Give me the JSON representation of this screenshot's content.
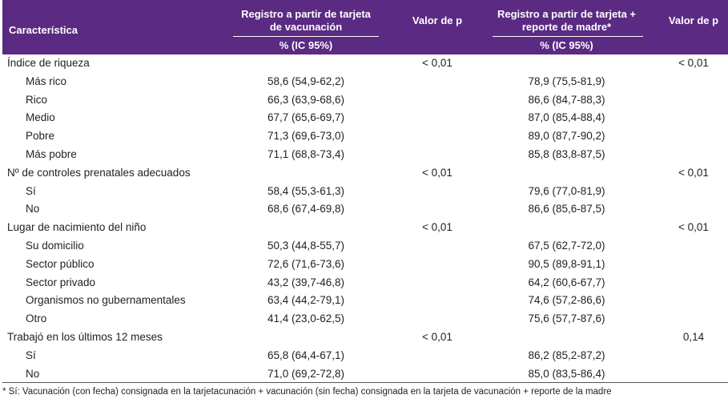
{
  "header": {
    "caracteristica": "Característica",
    "registro1_line1": "Registro a partir de tarjeta",
    "registro1_line2": "de vacunación",
    "valor_p_1": "Valor de p",
    "registro2_line1": "Registro a partir de tarjeta +",
    "registro2_line2": "reporte de madre*",
    "valor_p_2": "Valor de p",
    "sub1": "% (IC 95%)",
    "sub2": "% (IC 95%)"
  },
  "rows": [
    {
      "label": "Índice de riqueza",
      "v1": "",
      "p1": "< 0,01",
      "v2": "",
      "p2": "< 0,01",
      "sub": false
    },
    {
      "label": "Más rico",
      "v1": "58,6 (54,9-62,2)",
      "p1": "",
      "v2": "78,9 (75,5-81,9)",
      "p2": "",
      "sub": true
    },
    {
      "label": "Rico",
      "v1": "66,3 (63,9-68,6)",
      "p1": "",
      "v2": "86,6 (84,7-88,3)",
      "p2": "",
      "sub": true
    },
    {
      "label": "Medio",
      "v1": "67,7 (65,6-69,7)",
      "p1": "",
      "v2": "87,0 (85,4-88,4)",
      "p2": "",
      "sub": true
    },
    {
      "label": "Pobre",
      "v1": "71,3 (69,6-73,0)",
      "p1": "",
      "v2": "89,0 (87,7-90,2)",
      "p2": "",
      "sub": true
    },
    {
      "label": "Más pobre",
      "v1": "71,1 (68,8-73,4)",
      "p1": "",
      "v2": "85,8 (83,8-87,5)",
      "p2": "",
      "sub": true
    },
    {
      "label": "Nº de controles prenatales adecuados",
      "v1": "",
      "p1": "< 0,01",
      "v2": "",
      "p2": "< 0,01",
      "sub": false
    },
    {
      "label": "Sí",
      "v1": "58,4 (55,3-61,3)",
      "p1": "",
      "v2": "79,6 (77,0-81,9)",
      "p2": "",
      "sub": true
    },
    {
      "label": "No",
      "v1": "68,6 (67,4-69,8)",
      "p1": "",
      "v2": "86,6 (85,6-87,5)",
      "p2": "",
      "sub": true
    },
    {
      "label": "Lugar de nacimiento del niño",
      "v1": "",
      "p1": "< 0,01",
      "v2": "",
      "p2": "< 0,01",
      "sub": false
    },
    {
      "label": "Su domicilio",
      "v1": "50,3 (44,8-55,7)",
      "p1": "",
      "v2": "67,5 (62,7-72,0)",
      "p2": "",
      "sub": true
    },
    {
      "label": "Sector público",
      "v1": "72,6 (71,6-73,6)",
      "p1": "",
      "v2": "90,5 (89,8-91,1)",
      "p2": "",
      "sub": true
    },
    {
      "label": "Sector privado",
      "v1": "43,2 (39,7-46,8)",
      "p1": "",
      "v2": "64,2 (60,6-67,7)",
      "p2": "",
      "sub": true
    },
    {
      "label": "Organismos no gubernamentales",
      "v1": "63,4 (44,2-79,1)",
      "p1": "",
      "v2": "74,6 (57,2-86,6)",
      "p2": "",
      "sub": true
    },
    {
      "label": "Otro",
      "v1": "41,4 (23,0-62,5)",
      "p1": "",
      "v2": "75,6 (57,7-87,6)",
      "p2": "",
      "sub": true
    },
    {
      "label": "Trabajó en los últimos 12 meses",
      "v1": "",
      "p1": "< 0,01",
      "v2": "",
      "p2": "0,14",
      "sub": false
    },
    {
      "label": "Sí",
      "v1": "65,8 (64,4-67,1)",
      "p1": "",
      "v2": "86,2 (85,2-87,2)",
      "p2": "",
      "sub": true
    },
    {
      "label": "No",
      "v1": "71,0 (69,2-72,8)",
      "p1": "",
      "v2": "85,0 (83,5-86,4)",
      "p2": "",
      "sub": true
    }
  ],
  "footnote": "* Sí: Vacunación (con fecha) consignada en la tarjetacunación + vacunación (sin fecha) consignada en la tarjeta de vacunación + reporte de la madre",
  "colors": {
    "header_bg": "#5b2a83",
    "header_text": "#ffffff"
  }
}
